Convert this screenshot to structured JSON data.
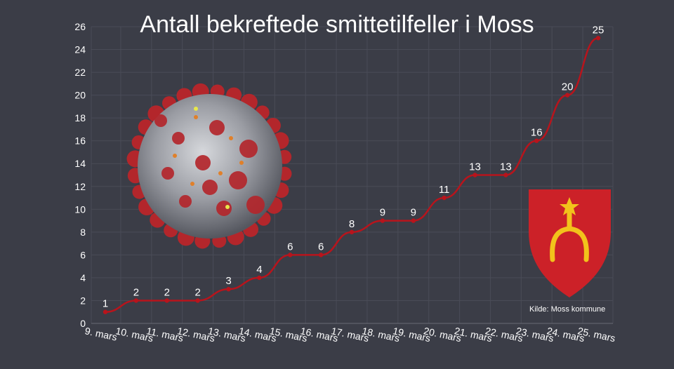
{
  "chart_data": {
    "type": "line",
    "title": "Antall bekreftede smittetilfeller i Moss",
    "source": "Kilde: Moss kommune",
    "categories": [
      "9. mars",
      "10. mars",
      "11. mars",
      "12. mars",
      "13. mars",
      "14. mars",
      "15. mars",
      "16. mars",
      "17. mars",
      "18. mars",
      "19. mars",
      "20. mars",
      "21. mars",
      "22. mars",
      "23. mars",
      "24. mars",
      "25. mars"
    ],
    "values": [
      1,
      2,
      2,
      2,
      3,
      4,
      6,
      6,
      8,
      9,
      9,
      11,
      13,
      13,
      16,
      20,
      25
    ],
    "ylim": [
      0,
      26
    ],
    "yticks": [
      0,
      2,
      4,
      6,
      8,
      10,
      12,
      14,
      16,
      18,
      20,
      22,
      24,
      26
    ],
    "grid": true,
    "data_labels": true,
    "line_color": "#b8141c",
    "background_color": "#3b3d47",
    "text_color": "#ffffff",
    "grid_color": "#4a4c57"
  },
  "images": {
    "virus": "coronavirus-illustration",
    "coat_of_arms": "moss-coat-of-arms"
  },
  "colors": {
    "shield_red": "#cc2128",
    "emblem_yellow": "#f2c21b",
    "virus_spike": "#b3262b",
    "virus_body": "#9a9ca3"
  }
}
